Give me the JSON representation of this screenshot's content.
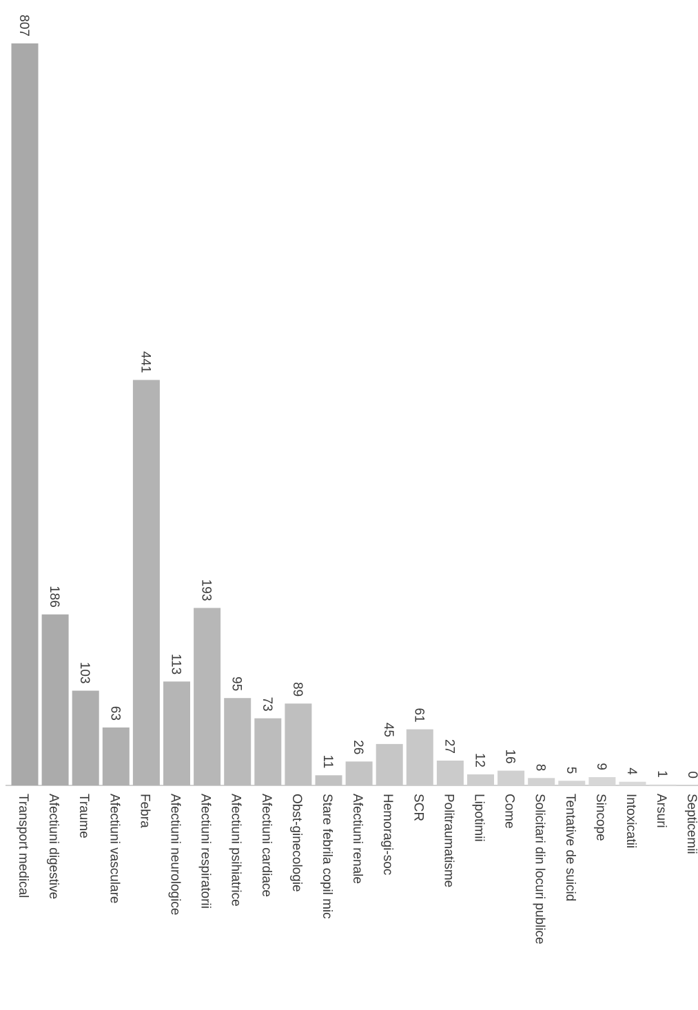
{
  "chart_data": {
    "type": "bar",
    "orientation": "rotated",
    "categories": [
      "Transport medical",
      "Afectiuni digestive",
      "Traume",
      "Afectiuni vasculare",
      "Febra",
      "Afectiuni neurologice",
      "Afectiuni respiratorii",
      "Afectiuni psihiatrice",
      "Afectiuni cardiace",
      "Obst-ginecologie",
      "Stare febrila copil mic",
      "Afectiuni renale",
      "Hemoragi-soc",
      "SCR",
      "Politraumatisme",
      "Lipotimii",
      "Come",
      "Solicitari din locuri publice",
      "Tentative de suicid",
      "Sincope",
      "Intoxicatii",
      "Arsuri",
      "Septicemii"
    ],
    "values": [
      807,
      186,
      103,
      63,
      441,
      113,
      193,
      95,
      73,
      89,
      11,
      26,
      45,
      61,
      27,
      12,
      16,
      8,
      5,
      9,
      4,
      1,
      0
    ],
    "data_labels": [
      "807",
      "186",
      "103",
      "63",
      "441",
      "113",
      "193",
      "95",
      "73",
      "89",
      "11",
      "26",
      "45",
      "61",
      "27",
      "12",
      "16",
      "8",
      "5",
      "9",
      "4",
      "1",
      "0"
    ],
    "ylim": [
      0,
      807
    ],
    "grid": false,
    "legend": "none",
    "title": "",
    "xlabel": "",
    "ylabel": "",
    "colors": {
      "bar_dark": "#a9a9a9",
      "bar_light": "#dedede",
      "text": "#3a3a3a",
      "baseline": "#b5b5b5"
    }
  }
}
